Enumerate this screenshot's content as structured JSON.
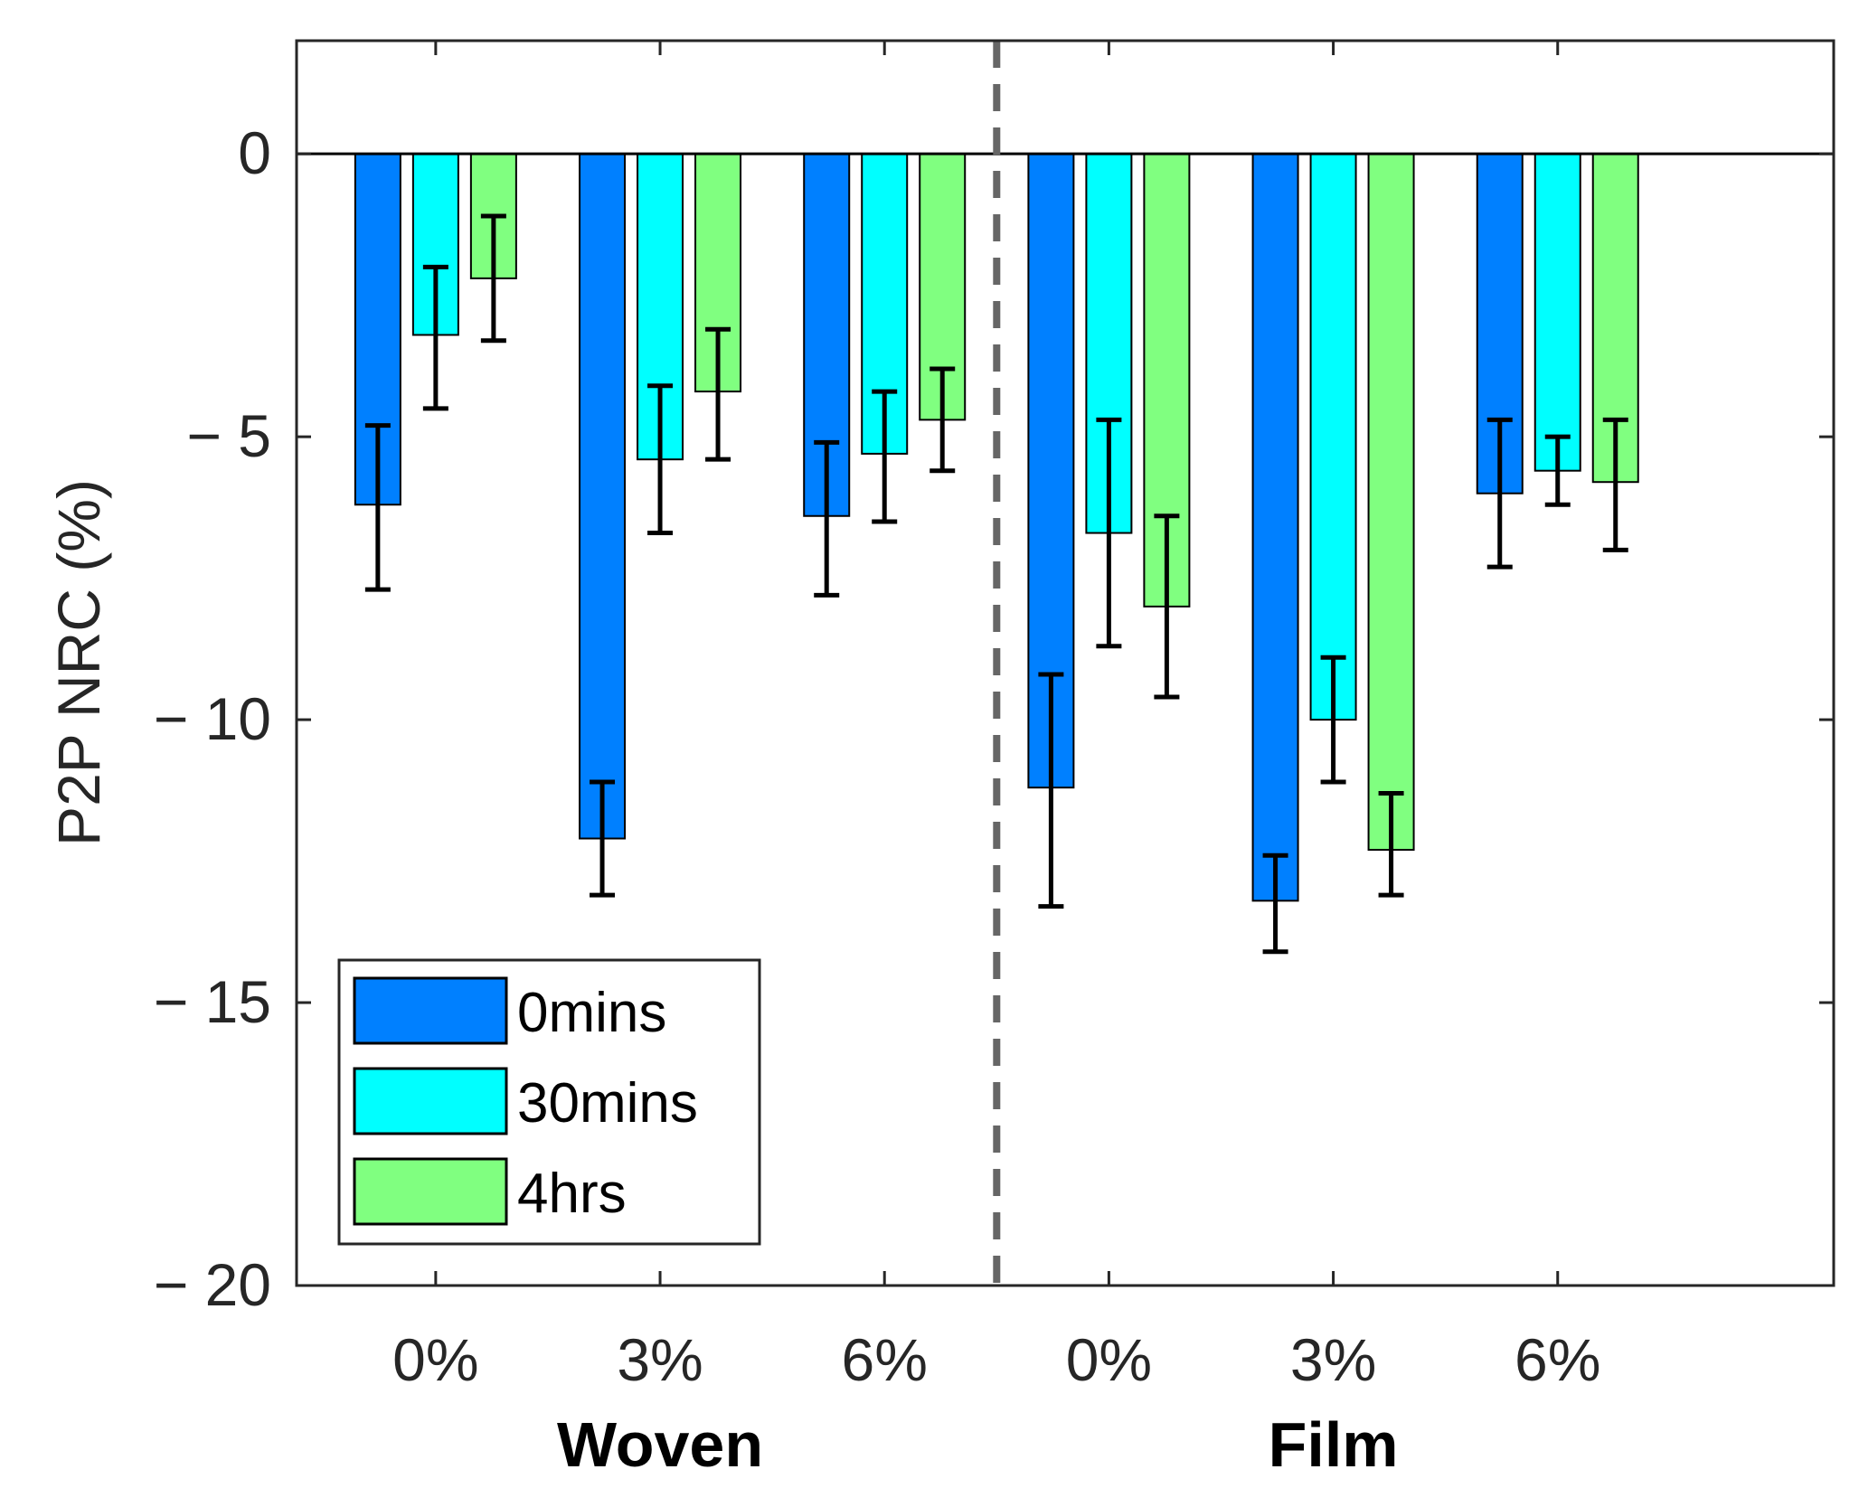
{
  "chart_data": {
    "type": "bar",
    "title": "",
    "xlabel": "",
    "ylabel": "P2P NRC (%)",
    "ylim": [
      -20,
      2
    ],
    "yticks": [
      0,
      -5,
      -10,
      -15,
      -20
    ],
    "ytick_labels": [
      "0",
      "− 5",
      "− 10",
      "− 15",
      "− 20"
    ],
    "categories": [
      "0%",
      "3%",
      "6%",
      "0%",
      "3%",
      "6%"
    ],
    "groups": [
      {
        "label": "Woven",
        "categories": [
          0,
          1,
          2
        ]
      },
      {
        "label": "Film",
        "categories": [
          3,
          4,
          5
        ]
      }
    ],
    "separator_after_category": 2,
    "series": [
      {
        "name": "0mins",
        "color": "#0080ff",
        "values": [
          -6.2,
          -12.1,
          -6.4,
          -11.2,
          -13.2,
          -6.0
        ],
        "err_low": [
          -7.7,
          -13.1,
          -7.8,
          -13.3,
          -14.1,
          -7.3
        ],
        "err_high": [
          -4.8,
          -11.1,
          -5.1,
          -9.2,
          -12.4,
          -4.7
        ]
      },
      {
        "name": "30mins",
        "color": "#00ffff",
        "values": [
          -3.2,
          -5.4,
          -5.3,
          -6.7,
          -10.0,
          -5.6
        ],
        "err_low": [
          -4.5,
          -6.7,
          -6.5,
          -8.7,
          -11.1,
          -6.2
        ],
        "err_high": [
          -2.0,
          -4.1,
          -4.2,
          -4.7,
          -8.9,
          -5.0
        ]
      },
      {
        "name": "4hrs",
        "color": "#80ff80",
        "values": [
          -2.2,
          -4.2,
          -4.7,
          -8.0,
          -12.3,
          -5.8
        ],
        "err_low": [
          -3.3,
          -5.4,
          -5.6,
          -9.6,
          -13.1,
          -7.0
        ],
        "err_high": [
          -1.1,
          -3.1,
          -3.8,
          -6.4,
          -11.3,
          -4.7
        ]
      }
    ],
    "legend_position": "bottom-left",
    "grid": false
  }
}
